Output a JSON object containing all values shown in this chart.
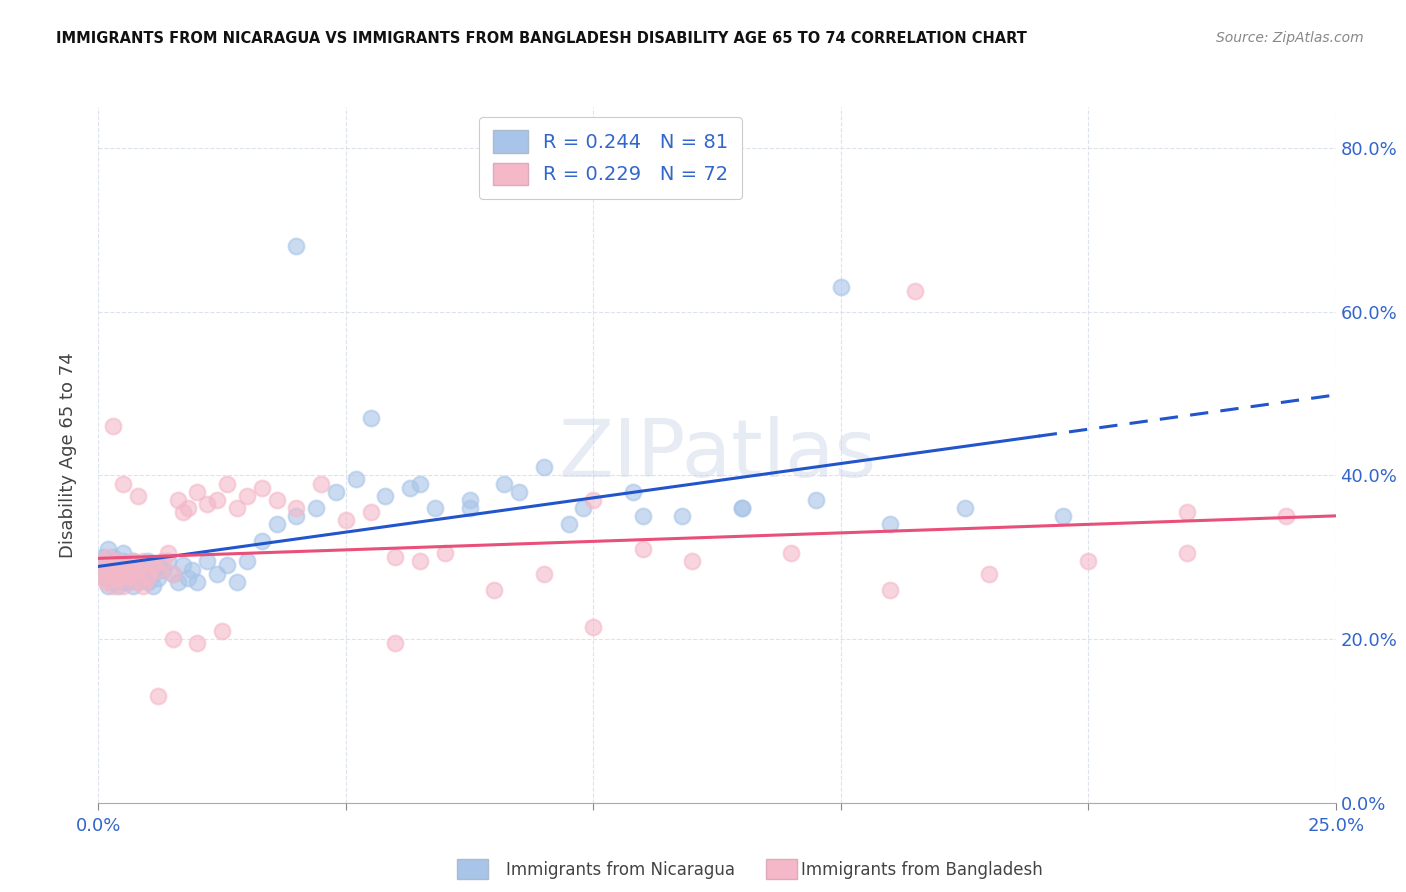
{
  "title": "IMMIGRANTS FROM NICARAGUA VS IMMIGRANTS FROM BANGLADESH DISABILITY AGE 65 TO 74 CORRELATION CHART",
  "source": "Source: ZipAtlas.com",
  "ylabel_label": "Disability Age 65 to 74",
  "legend_label1": "Immigrants from Nicaragua",
  "legend_label2": "Immigrants from Bangladesh",
  "r1": 0.244,
  "n1": 81,
  "r2": 0.229,
  "n2": 72,
  "color1": "#a8c4e8",
  "color2": "#f4b8c8",
  "trendline1_color": "#2255cc",
  "trendline2_color": "#e8507a",
  "watermark": "ZIPatlas",
  "xlim": [
    0.0,
    0.25
  ],
  "ylim": [
    0.0,
    0.85
  ],
  "xticks": [
    0.0,
    0.05,
    0.1,
    0.15,
    0.2,
    0.25
  ],
  "yticks": [
    0.0,
    0.2,
    0.4,
    0.6,
    0.8
  ],
  "scatter1_x": [
    0.0005,
    0.001,
    0.001,
    0.0015,
    0.002,
    0.002,
    0.002,
    0.0025,
    0.003,
    0.003,
    0.003,
    0.003,
    0.0035,
    0.004,
    0.004,
    0.004,
    0.004,
    0.005,
    0.005,
    0.005,
    0.005,
    0.005,
    0.006,
    0.006,
    0.006,
    0.007,
    0.007,
    0.007,
    0.008,
    0.008,
    0.008,
    0.009,
    0.009,
    0.01,
    0.01,
    0.011,
    0.011,
    0.012,
    0.012,
    0.013,
    0.014,
    0.015,
    0.016,
    0.017,
    0.018,
    0.019,
    0.02,
    0.022,
    0.024,
    0.026,
    0.028,
    0.03,
    0.033,
    0.036,
    0.04,
    0.044,
    0.048,
    0.052,
    0.058,
    0.063,
    0.068,
    0.075,
    0.082,
    0.09,
    0.098,
    0.108,
    0.118,
    0.13,
    0.145,
    0.16,
    0.175,
    0.195,
    0.04,
    0.055,
    0.065,
    0.075,
    0.085,
    0.095,
    0.11,
    0.13,
    0.15
  ],
  "scatter1_y": [
    0.295,
    0.285,
    0.3,
    0.275,
    0.29,
    0.265,
    0.31,
    0.28,
    0.295,
    0.27,
    0.285,
    0.3,
    0.275,
    0.265,
    0.29,
    0.28,
    0.295,
    0.27,
    0.285,
    0.295,
    0.28,
    0.305,
    0.275,
    0.29,
    0.27,
    0.285,
    0.265,
    0.295,
    0.28,
    0.27,
    0.29,
    0.275,
    0.285,
    0.27,
    0.295,
    0.28,
    0.265,
    0.29,
    0.275,
    0.285,
    0.295,
    0.28,
    0.27,
    0.29,
    0.275,
    0.285,
    0.27,
    0.295,
    0.28,
    0.29,
    0.27,
    0.295,
    0.32,
    0.34,
    0.35,
    0.36,
    0.38,
    0.395,
    0.375,
    0.385,
    0.36,
    0.37,
    0.39,
    0.41,
    0.36,
    0.38,
    0.35,
    0.36,
    0.37,
    0.34,
    0.36,
    0.35,
    0.68,
    0.47,
    0.39,
    0.36,
    0.38,
    0.34,
    0.35,
    0.36,
    0.63
  ],
  "scatter2_x": [
    0.0005,
    0.001,
    0.001,
    0.0015,
    0.002,
    0.002,
    0.0025,
    0.003,
    0.003,
    0.003,
    0.004,
    0.004,
    0.004,
    0.005,
    0.005,
    0.005,
    0.006,
    0.006,
    0.007,
    0.007,
    0.007,
    0.008,
    0.008,
    0.009,
    0.009,
    0.01,
    0.01,
    0.011,
    0.012,
    0.013,
    0.014,
    0.015,
    0.016,
    0.017,
    0.018,
    0.02,
    0.022,
    0.024,
    0.026,
    0.028,
    0.03,
    0.033,
    0.036,
    0.04,
    0.045,
    0.05,
    0.055,
    0.06,
    0.065,
    0.07,
    0.08,
    0.09,
    0.1,
    0.11,
    0.12,
    0.14,
    0.16,
    0.18,
    0.2,
    0.22,
    0.24,
    0.003,
    0.005,
    0.008,
    0.012,
    0.015,
    0.02,
    0.025,
    0.06,
    0.1,
    0.165,
    0.22
  ],
  "scatter2_y": [
    0.285,
    0.275,
    0.295,
    0.27,
    0.285,
    0.3,
    0.28,
    0.275,
    0.265,
    0.29,
    0.285,
    0.275,
    0.295,
    0.28,
    0.265,
    0.29,
    0.285,
    0.275,
    0.29,
    0.28,
    0.295,
    0.27,
    0.285,
    0.265,
    0.295,
    0.28,
    0.275,
    0.29,
    0.285,
    0.295,
    0.305,
    0.28,
    0.37,
    0.355,
    0.36,
    0.38,
    0.365,
    0.37,
    0.39,
    0.36,
    0.375,
    0.385,
    0.37,
    0.36,
    0.39,
    0.345,
    0.355,
    0.3,
    0.295,
    0.305,
    0.26,
    0.28,
    0.215,
    0.31,
    0.295,
    0.305,
    0.26,
    0.28,
    0.295,
    0.305,
    0.35,
    0.46,
    0.39,
    0.375,
    0.13,
    0.2,
    0.195,
    0.21,
    0.195,
    0.37,
    0.625,
    0.355
  ]
}
